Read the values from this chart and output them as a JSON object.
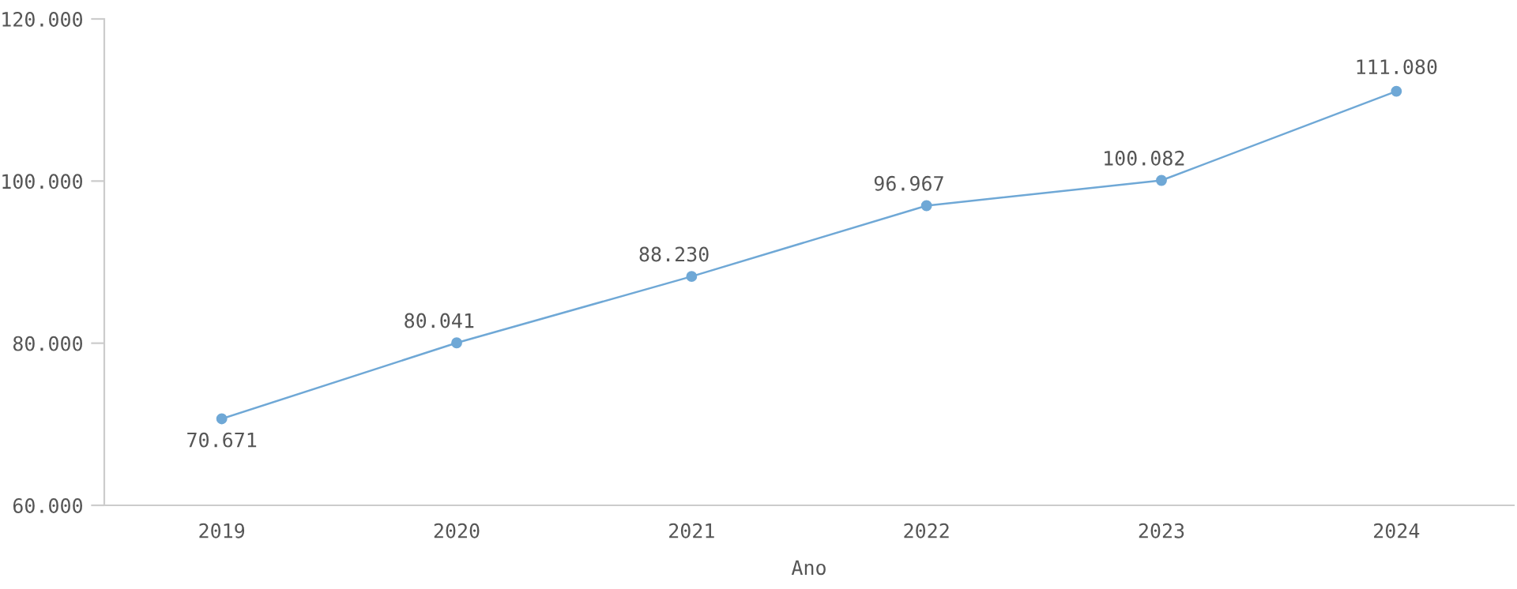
{
  "chart_data": {
    "type": "line",
    "xlabel": "Ano",
    "categories": [
      "2019",
      "2020",
      "2021",
      "2022",
      "2023",
      "2024"
    ],
    "series": [
      {
        "color": "#6fa8d6",
        "values": [
          70671,
          80041,
          88230,
          96967,
          100082,
          111080
        ],
        "value_labels": [
          "70.671",
          "80.041",
          "88.230",
          "96.967",
          "100.082",
          "111.080"
        ]
      }
    ],
    "ylim": [
      60000,
      120000
    ],
    "yticks": [
      {
        "value": 60000,
        "label": "60.000"
      },
      {
        "value": 80000,
        "label": "80.000"
      },
      {
        "value": 100000,
        "label": "100.000"
      },
      {
        "value": 120000,
        "label": "120.000"
      }
    ],
    "marker": "circle",
    "line_style": "solid"
  }
}
